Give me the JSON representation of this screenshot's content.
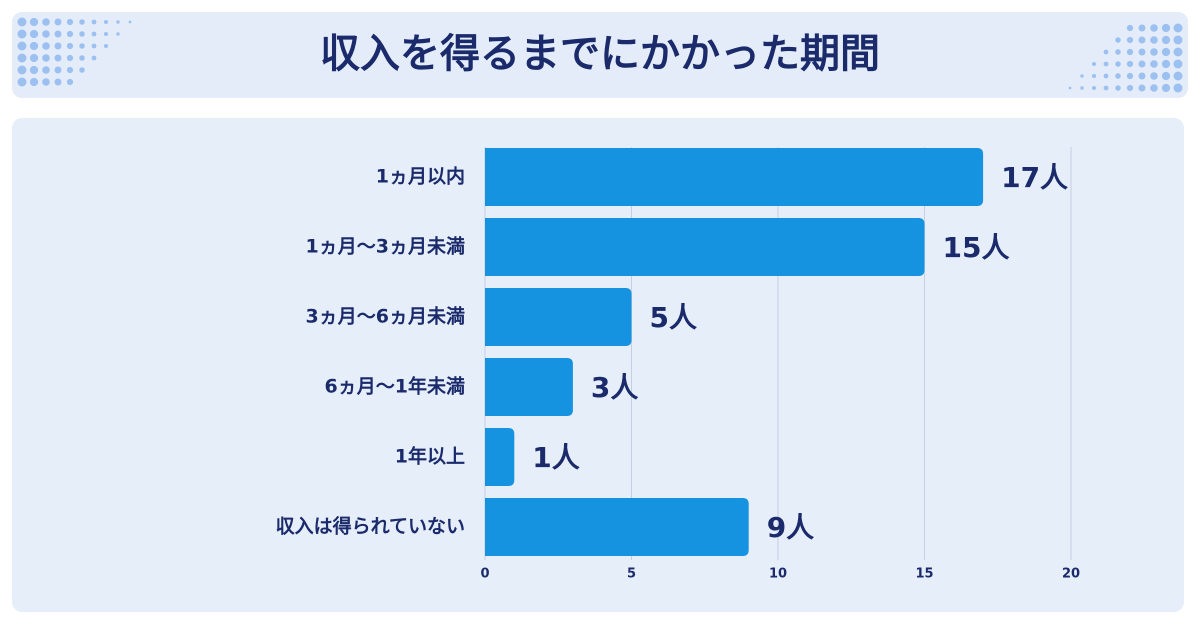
{
  "chart_data": {
    "type": "bar",
    "orientation": "horizontal",
    "title": "収入を得るまでにかかった期間",
    "categories": [
      "1ヵ月以内",
      "1ヵ月〜3ヵ月未満",
      "3ヵ月〜6ヵ月未満",
      "6ヵ月〜1年未満",
      "1年以上",
      "収入は得られていない"
    ],
    "values": [
      17,
      15,
      5,
      3,
      1,
      9
    ],
    "value_labels": [
      "17人",
      "15人",
      "5人",
      "3人",
      "1人",
      "9人"
    ],
    "color": "#1592e0",
    "xlim": [
      0,
      20
    ],
    "xticks": [
      0,
      5,
      10,
      15,
      20
    ],
    "grid": true
  }
}
